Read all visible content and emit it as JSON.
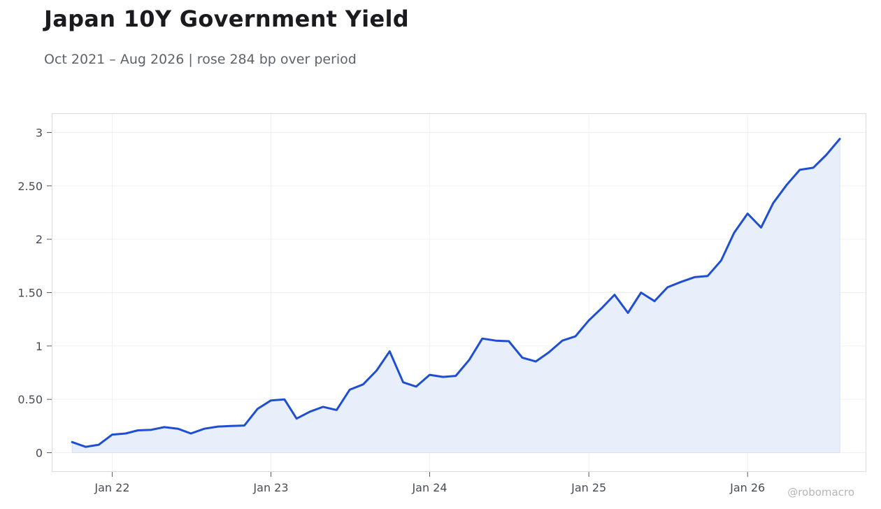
{
  "title": "Japan 10Y Government Yield",
  "subtitle": "Oct 2021 – Aug 2026 | rose 284 bp over period",
  "watermark": "@robomacro",
  "colors": {
    "line": "#1f4fd1",
    "fill": "#e9eefb",
    "grid": "#eef0f4",
    "frame": "#d9dbe1"
  },
  "chart_data": {
    "type": "area",
    "title": "Japan 10Y Government Yield",
    "subtitle": "Oct 2021 – Aug 2026 | rose 284 bp over period",
    "xlabel": "",
    "ylabel": "",
    "ylim": [
      -0.18,
      3.18
    ],
    "yticks": [
      0,
      0.5,
      1,
      1.5,
      2,
      2.5,
      3
    ],
    "ytick_labels": [
      "0",
      "0.50",
      "1",
      "1.50",
      "2",
      "2.50",
      "3"
    ],
    "xticks": [
      "2022-01-01",
      "2023-01-01",
      "2024-01-01",
      "2025-01-01",
      "2026-01-01"
    ],
    "xtick_labels": [
      "Jan 22",
      "Jan 23",
      "Jan 24",
      "Jan 25",
      "Jan 26"
    ],
    "xlim": [
      "2021-08-15",
      "2026-10-01"
    ],
    "grid": true,
    "series": [
      {
        "x": [
          "2021-10",
          "2021-11",
          "2021-12",
          "2022-01",
          "2022-02",
          "2022-03",
          "2022-04",
          "2022-05",
          "2022-06",
          "2022-07",
          "2022-08",
          "2022-09",
          "2022-10",
          "2022-11",
          "2022-12",
          "2023-01",
          "2023-02",
          "2023-03",
          "2023-04",
          "2023-05",
          "2023-06",
          "2023-07",
          "2023-08",
          "2023-09",
          "2023-10",
          "2023-11",
          "2023-12",
          "2024-01",
          "2024-02",
          "2024-03",
          "2024-04",
          "2024-05",
          "2024-06",
          "2024-07",
          "2024-08",
          "2024-09",
          "2024-10",
          "2024-11",
          "2024-12",
          "2025-01",
          "2025-02",
          "2025-03",
          "2025-04",
          "2025-05",
          "2025-06",
          "2025-07",
          "2025-08",
          "2025-09",
          "2025-10",
          "2025-11",
          "2025-12",
          "2026-01",
          "2026-02",
          "2026-03",
          "2026-04",
          "2026-05",
          "2026-06",
          "2026-07",
          "2026-08"
        ],
        "values": [
          0.1,
          0.055,
          0.075,
          0.17,
          0.18,
          0.21,
          0.215,
          0.24,
          0.225,
          0.18,
          0.225,
          0.245,
          0.25,
          0.255,
          0.41,
          0.49,
          0.5,
          0.32,
          0.385,
          0.43,
          0.4,
          0.59,
          0.64,
          0.77,
          0.95,
          0.66,
          0.62,
          0.73,
          0.71,
          0.72,
          0.87,
          1.07,
          1.05,
          1.045,
          0.89,
          0.855,
          0.94,
          1.05,
          1.09,
          1.24,
          1.36,
          1.48,
          1.31,
          1.5,
          1.42,
          1.55,
          1.6,
          1.645,
          1.655,
          1.8,
          2.06,
          2.24,
          2.11,
          2.34,
          2.51,
          2.65,
          2.67,
          2.79,
          2.94
        ]
      }
    ]
  }
}
